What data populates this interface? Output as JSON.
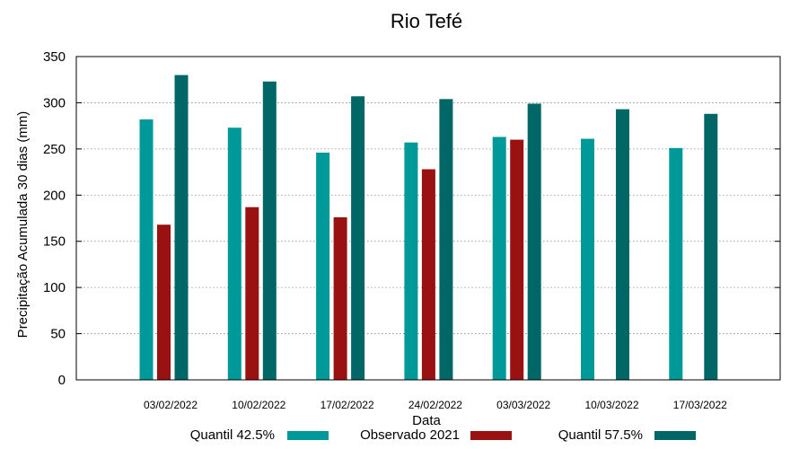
{
  "chart_data": {
    "type": "bar",
    "title": "Rio Tefé",
    "xlabel": "Data",
    "ylabel": "Precipitação Acumulada 30 dias (mm)",
    "ylim": [
      0,
      350
    ],
    "yticks": [
      0,
      50,
      100,
      150,
      200,
      250,
      300,
      350
    ],
    "grid": true,
    "legend_position": "bottom",
    "categories": [
      "03/02/2022",
      "10/02/2022",
      "17/02/2022",
      "24/02/2022",
      "03/03/2022",
      "10/03/2022",
      "17/03/2022"
    ],
    "series": [
      {
        "name": "Quantil 42.5%",
        "color": "#009999",
        "values": [
          282,
          273,
          246,
          257,
          263,
          261,
          251
        ]
      },
      {
        "name": "Observado 2021",
        "color": "#991111",
        "values": [
          168,
          187,
          176,
          228,
          260,
          null,
          null
        ]
      },
      {
        "name": "Quantil 57.5%",
        "color": "#006666",
        "values": [
          330,
          323,
          307,
          304,
          299,
          293,
          288
        ]
      }
    ]
  }
}
